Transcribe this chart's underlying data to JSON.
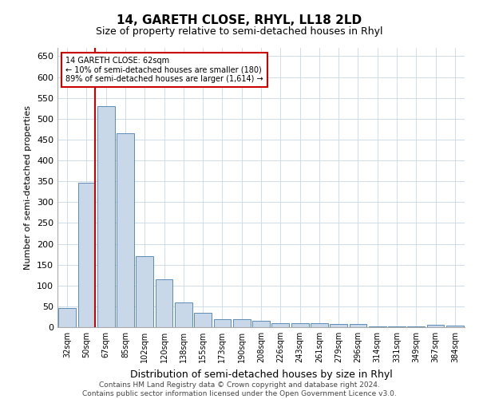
{
  "title": "14, GARETH CLOSE, RHYL, LL18 2LD",
  "subtitle": "Size of property relative to semi-detached houses in Rhyl",
  "xlabel": "Distribution of semi-detached houses by size in Rhyl",
  "ylabel": "Number of semi-detached properties",
  "categories": [
    "32sqm",
    "50sqm",
    "67sqm",
    "85sqm",
    "102sqm",
    "120sqm",
    "138sqm",
    "155sqm",
    "173sqm",
    "190sqm",
    "208sqm",
    "226sqm",
    "243sqm",
    "261sqm",
    "279sqm",
    "296sqm",
    "314sqm",
    "331sqm",
    "349sqm",
    "367sqm",
    "384sqm"
  ],
  "values": [
    46,
    347,
    530,
    465,
    170,
    115,
    60,
    35,
    20,
    20,
    15,
    10,
    10,
    10,
    8,
    8,
    1,
    1,
    1,
    5,
    4
  ],
  "bar_color": "#c8d8e8",
  "bar_edge_color": "#5b8db8",
  "property_line_bar_index": 1,
  "annotation_text": "14 GARETH CLOSE: 62sqm\n← 10% of semi-detached houses are smaller (180)\n89% of semi-detached houses are larger (1,614) →",
  "annotation_box_color": "#ffffff",
  "annotation_box_edge_color": "#cc0000",
  "property_line_color": "#cc0000",
  "ylim": [
    0,
    670
  ],
  "yticks": [
    0,
    50,
    100,
    150,
    200,
    250,
    300,
    350,
    400,
    450,
    500,
    550,
    600,
    650
  ],
  "footer_line1": "Contains HM Land Registry data © Crown copyright and database right 2024.",
  "footer_line2": "Contains public sector information licensed under the Open Government Licence v3.0.",
  "bg_color": "#ffffff",
  "grid_color": "#c8d8e8",
  "title_fontsize": 11,
  "subtitle_fontsize": 9,
  "ylabel_fontsize": 8,
  "xlabel_fontsize": 9,
  "tick_fontsize": 7,
  "annotation_fontsize": 7,
  "footer_fontsize": 6.5
}
